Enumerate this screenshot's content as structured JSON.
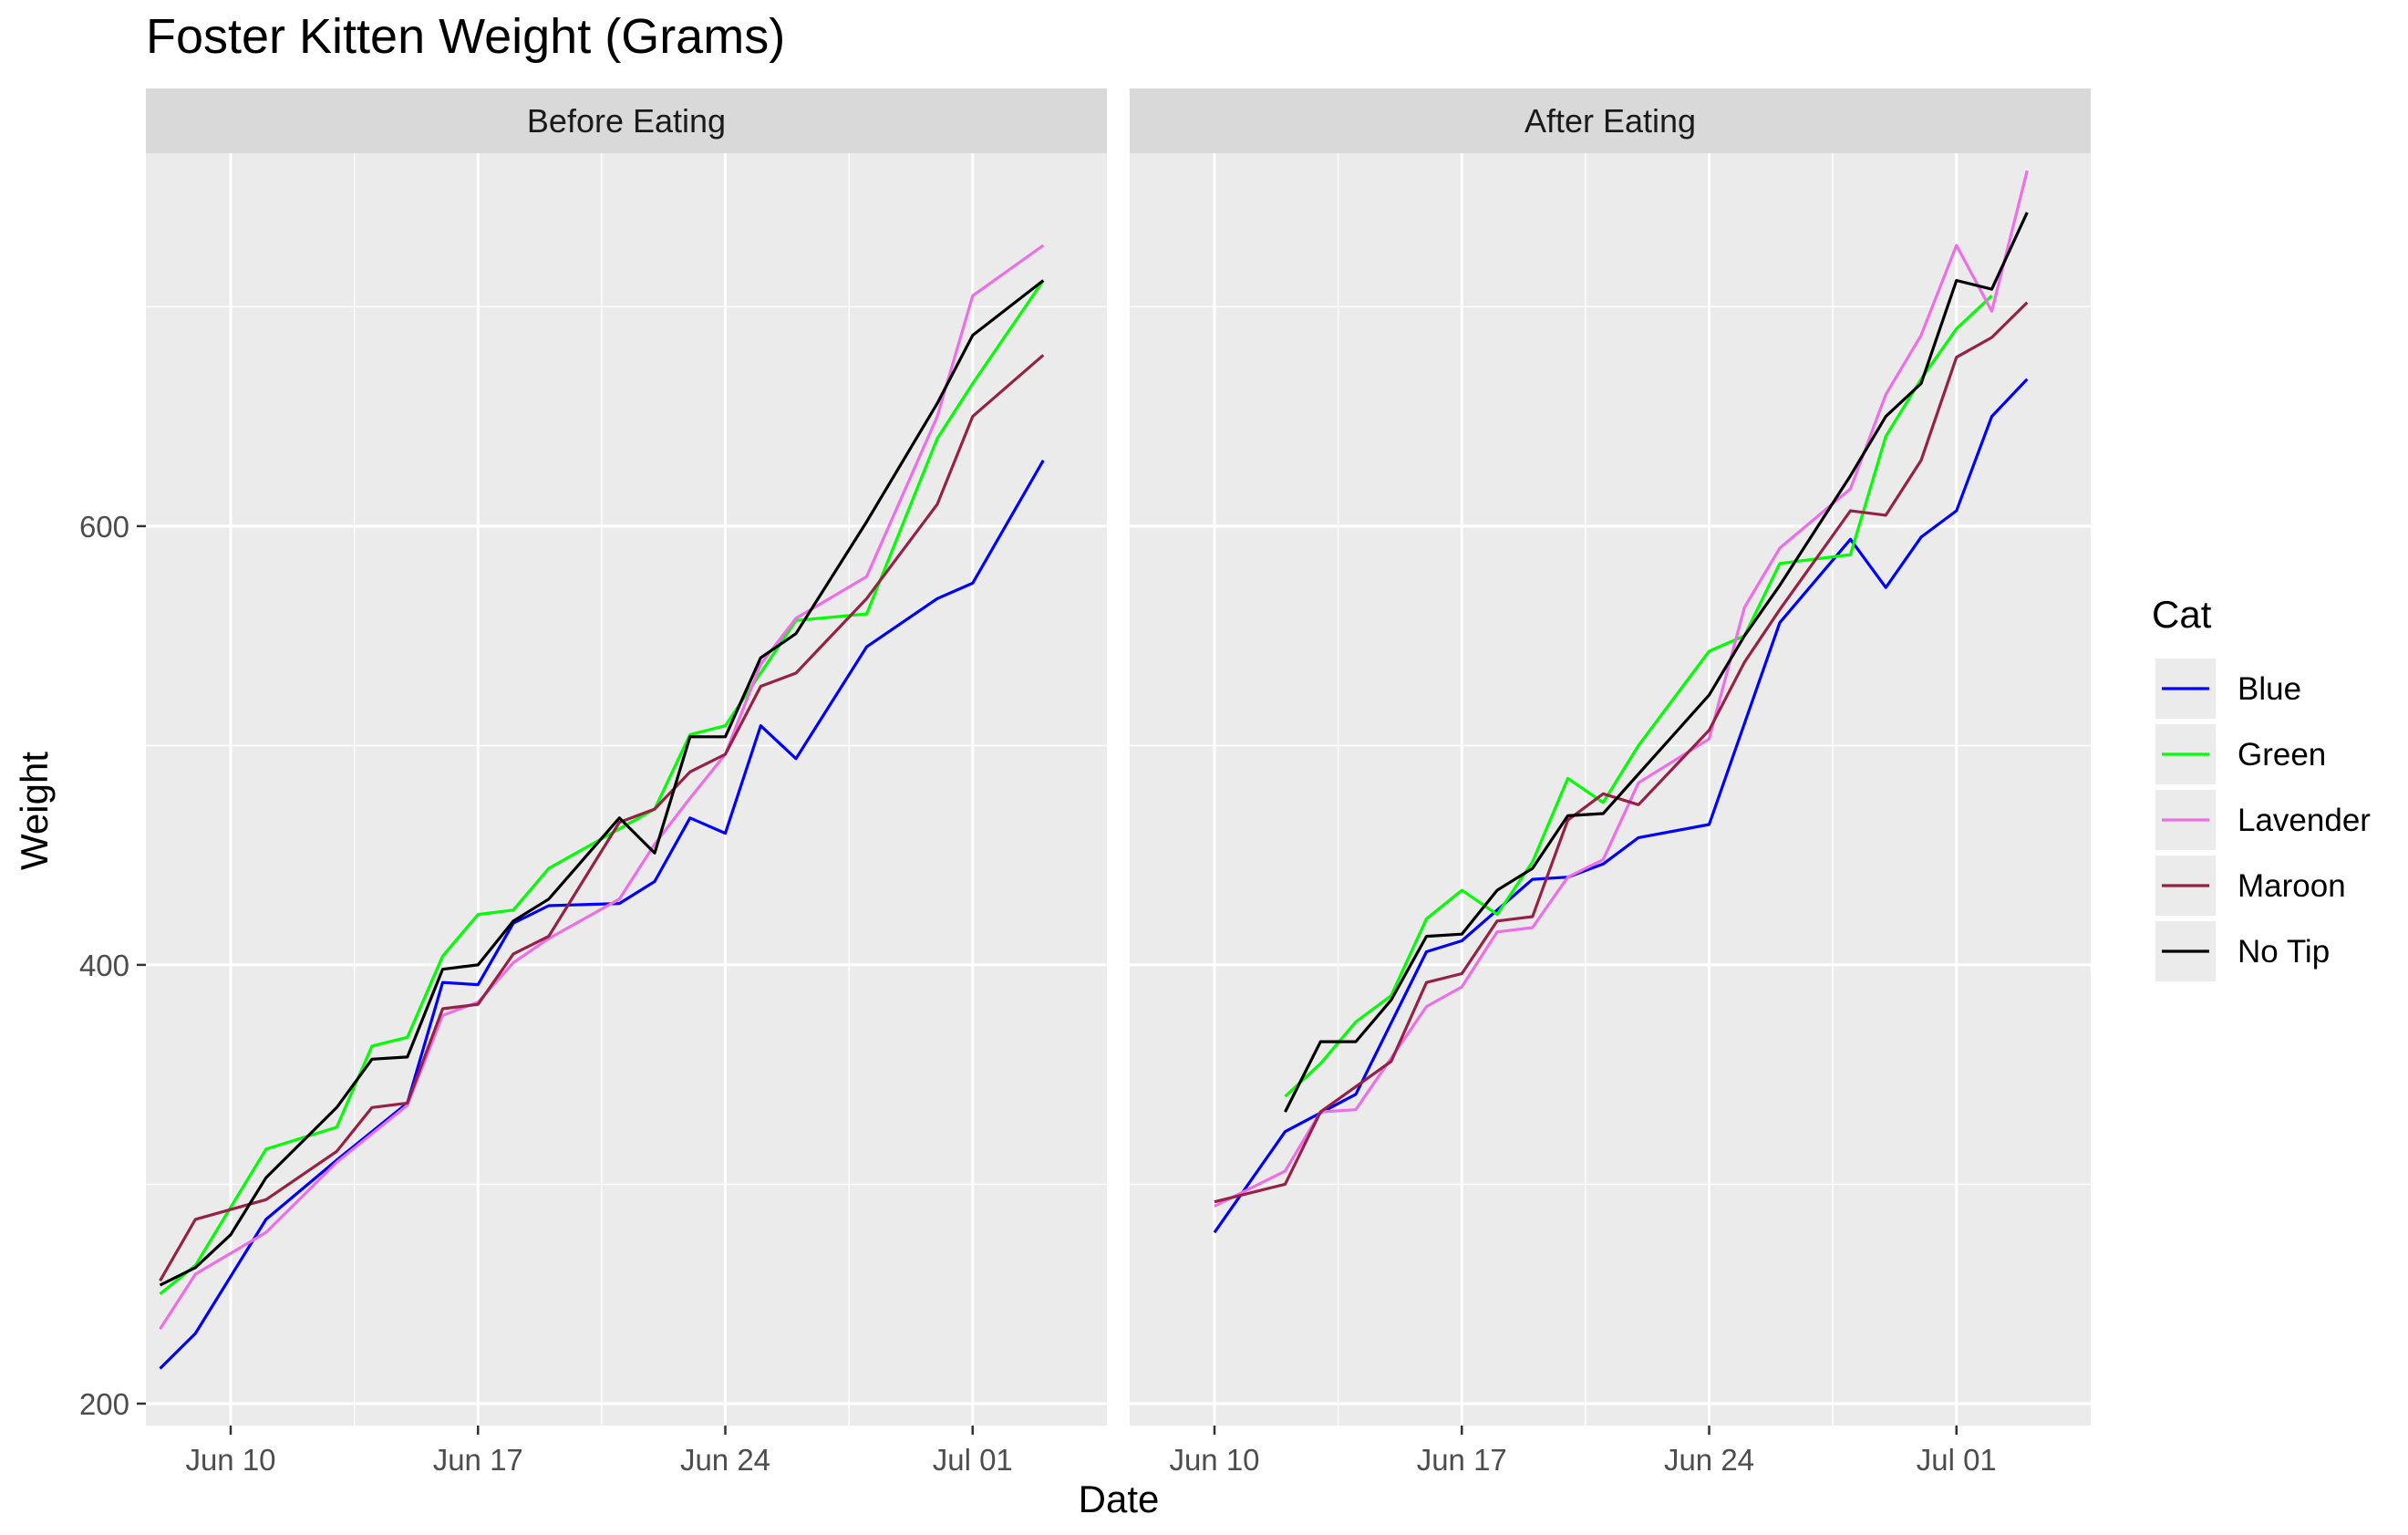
{
  "chart_data": {
    "type": "line",
    "title": "Foster Kitten Weight (Grams)",
    "xlabel": "Date",
    "ylabel": "Weight",
    "x_ticks": [
      "Jun 10",
      "Jun 17",
      "Jun 24",
      "Jul 01"
    ],
    "y_ticks": [
      200,
      400,
      600
    ],
    "ylim": [
      190,
      770
    ],
    "xlim_days": [
      7.6,
      34.8
    ],
    "grid": true,
    "legend": {
      "title": "Cat",
      "placement": "right",
      "entries": [
        {
          "name": "Blue",
          "color": "#0000ff"
        },
        {
          "name": "Green",
          "color": "#00ff00"
        },
        {
          "name": "Lavender",
          "color": "#ee6ee8"
        },
        {
          "name": "Maroon",
          "color": "#962145"
        },
        {
          "name": "No Tip",
          "color": "#000000"
        }
      ]
    },
    "panels": [
      {
        "label": "Before Eating",
        "series": [
          {
            "name": "Blue",
            "color": "#0000ff",
            "points": [
              [
                8,
                216
              ],
              [
                9,
                232
              ],
              [
                11,
                284
              ],
              [
                13,
                311
              ],
              [
                15,
                337
              ],
              [
                16,
                392
              ],
              [
                17,
                391
              ],
              [
                18,
                419
              ],
              [
                19,
                427
              ],
              [
                21,
                428
              ],
              [
                22,
                438
              ],
              [
                23,
                467
              ],
              [
                24,
                460
              ],
              [
                25,
                509
              ],
              [
                26,
                494
              ],
              [
                28,
                545
              ],
              [
                30,
                567
              ],
              [
                31,
                574
              ],
              [
                33,
                630
              ]
            ]
          },
          {
            "name": "Green",
            "color": "#00ff00",
            "points": [
              [
                8,
                250
              ],
              [
                9,
                263
              ],
              [
                11,
                316
              ],
              [
                13,
                326
              ],
              [
                14,
                363
              ],
              [
                15,
                367
              ],
              [
                16,
                404
              ],
              [
                17,
                423
              ],
              [
                18,
                425
              ],
              [
                19,
                444
              ],
              [
                21,
                462
              ],
              [
                22,
                471
              ],
              [
                23,
                505
              ],
              [
                24,
                509
              ],
              [
                25,
                533
              ],
              [
                26,
                557
              ],
              [
                28,
                560
              ],
              [
                30,
                640
              ],
              [
                31,
                665
              ],
              [
                33,
                712
              ]
            ]
          },
          {
            "name": "Lavender",
            "color": "#ee6ee8",
            "points": [
              [
                8,
                234
              ],
              [
                9,
                259
              ],
              [
                11,
                278
              ],
              [
                13,
                310
              ],
              [
                14,
                323
              ],
              [
                15,
                336
              ],
              [
                16,
                377
              ],
              [
                17,
                383
              ],
              [
                18,
                401
              ],
              [
                19,
                412
              ],
              [
                21,
                430
              ],
              [
                22,
                455
              ],
              [
                23,
                476
              ],
              [
                24,
                496
              ],
              [
                25,
                537
              ],
              [
                26,
                558
              ],
              [
                28,
                577
              ],
              [
                30,
                650
              ],
              [
                31,
                705
              ],
              [
                33,
                728
              ]
            ]
          },
          {
            "name": "Maroon",
            "color": "#962145",
            "points": [
              [
                8,
                256
              ],
              [
                9,
                284
              ],
              [
                11,
                293
              ],
              [
                13,
                315
              ],
              [
                14,
                335
              ],
              [
                15,
                337
              ],
              [
                16,
                380
              ],
              [
                17,
                382
              ],
              [
                18,
                405
              ],
              [
                19,
                413
              ],
              [
                21,
                465
              ],
              [
                22,
                471
              ],
              [
                23,
                488
              ],
              [
                24,
                496
              ],
              [
                25,
                527
              ],
              [
                26,
                533
              ],
              [
                28,
                567
              ],
              [
                30,
                610
              ],
              [
                31,
                650
              ],
              [
                33,
                678
              ]
            ]
          },
          {
            "name": "No Tip",
            "color": "#000000",
            "points": [
              [
                8,
                254
              ],
              [
                9,
                262
              ],
              [
                10,
                277
              ],
              [
                11,
                303
              ],
              [
                13,
                335
              ],
              [
                14,
                357
              ],
              [
                15,
                358
              ],
              [
                16,
                398
              ],
              [
                17,
                400
              ],
              [
                18,
                420
              ],
              [
                19,
                430
              ],
              [
                21,
                467
              ],
              [
                22,
                451
              ],
              [
                23,
                504
              ],
              [
                24,
                504
              ],
              [
                25,
                540
              ],
              [
                26,
                551
              ],
              [
                28,
                602
              ],
              [
                30,
                656
              ],
              [
                31,
                687
              ],
              [
                33,
                712
              ]
            ]
          }
        ]
      },
      {
        "label": "After Eating",
        "series": [
          {
            "name": "Blue",
            "color": "#0000ff",
            "points": [
              [
                10,
                278
              ],
              [
                12,
                324
              ],
              [
                14,
                341
              ],
              [
                16,
                406
              ],
              [
                17,
                411
              ],
              [
                19,
                439
              ],
              [
                20,
                440
              ],
              [
                21,
                446
              ],
              [
                22,
                458
              ],
              [
                24,
                464
              ],
              [
                26,
                556
              ],
              [
                28,
                594
              ],
              [
                29,
                572
              ],
              [
                30,
                595
              ],
              [
                31,
                607
              ],
              [
                32,
                650
              ],
              [
                33,
                667
              ]
            ]
          },
          {
            "name": "Green",
            "color": "#00ff00",
            "points": [
              [
                12,
                340
              ],
              [
                13,
                355
              ],
              [
                14,
                374
              ],
              [
                15,
                386
              ],
              [
                16,
                421
              ],
              [
                17,
                434
              ],
              [
                18,
                423
              ],
              [
                19,
                447
              ],
              [
                20,
                485
              ],
              [
                21,
                474
              ],
              [
                22,
                500
              ],
              [
                24,
                543
              ],
              [
                25,
                550
              ],
              [
                26,
                583
              ],
              [
                28,
                587
              ],
              [
                29,
                641
              ],
              [
                30,
                667
              ],
              [
                31,
                690
              ],
              [
                32,
                705
              ]
            ]
          },
          {
            "name": "Lavender",
            "color": "#ee6ee8",
            "points": [
              [
                10,
                290
              ],
              [
                12,
                306
              ],
              [
                13,
                333
              ],
              [
                14,
                334
              ],
              [
                16,
                381
              ],
              [
                17,
                390
              ],
              [
                18,
                415
              ],
              [
                19,
                417
              ],
              [
                20,
                440
              ],
              [
                21,
                448
              ],
              [
                22,
                483
              ],
              [
                24,
                503
              ],
              [
                25,
                563
              ],
              [
                26,
                590
              ],
              [
                28,
                617
              ],
              [
                29,
                660
              ],
              [
                30,
                687
              ],
              [
                31,
                728
              ],
              [
                32,
                698
              ],
              [
                33,
                762
              ]
            ]
          },
          {
            "name": "Maroon",
            "color": "#962145",
            "points": [
              [
                10,
                292
              ],
              [
                12,
                300
              ],
              [
                13,
                333
              ],
              [
                15,
                356
              ],
              [
                16,
                392
              ],
              [
                17,
                396
              ],
              [
                18,
                420
              ],
              [
                19,
                422
              ],
              [
                20,
                466
              ],
              [
                21,
                478
              ],
              [
                22,
                473
              ],
              [
                24,
                507
              ],
              [
                25,
                538
              ],
              [
                26,
                562
              ],
              [
                28,
                607
              ],
              [
                29,
                605
              ],
              [
                30,
                630
              ],
              [
                31,
                677
              ],
              [
                32,
                686
              ],
              [
                33,
                702
              ]
            ]
          },
          {
            "name": "No Tip",
            "color": "#000000",
            "points": [
              [
                12,
                333
              ],
              [
                13,
                365
              ],
              [
                14,
                365
              ],
              [
                15,
                384
              ],
              [
                16,
                413
              ],
              [
                17,
                414
              ],
              [
                18,
                434
              ],
              [
                19,
                444
              ],
              [
                20,
                468
              ],
              [
                21,
                469
              ],
              [
                22,
                487
              ],
              [
                24,
                523
              ],
              [
                25,
                550
              ],
              [
                26,
                573
              ],
              [
                28,
                623
              ],
              [
                29,
                650
              ],
              [
                30,
                665
              ],
              [
                31,
                712
              ],
              [
                32,
                708
              ],
              [
                33,
                743
              ]
            ]
          }
        ]
      }
    ]
  }
}
